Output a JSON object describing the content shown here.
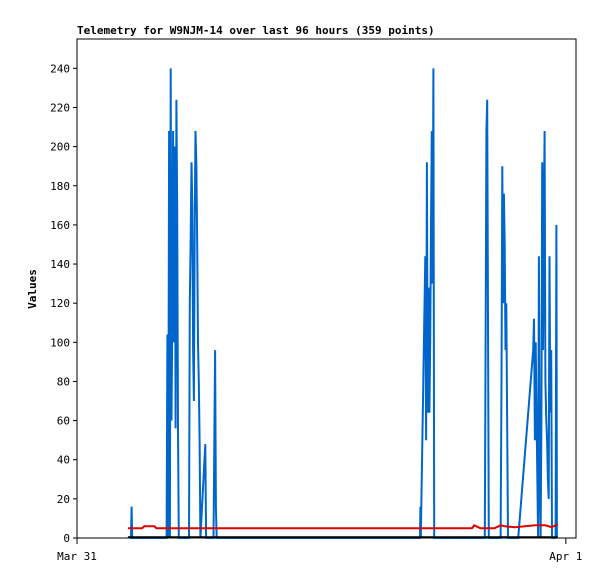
{
  "chart_data": {
    "type": "line",
    "title": "Telemetry for W9NJM-14 over last 96 hours (359 points)",
    "ylabel": "Values",
    "xlabel": "",
    "ylim": [
      0,
      255
    ],
    "xlim_hours": [
      0,
      24.5
    ],
    "x_ticks": [
      {
        "label": "Mar 31",
        "x": 0
      },
      {
        "label": "Apr 1",
        "x": 24
      }
    ],
    "y_ticks": [
      0,
      20,
      40,
      60,
      80,
      100,
      120,
      140,
      160,
      180,
      200,
      220,
      240
    ],
    "grid": false,
    "legend": "none",
    "series": [
      {
        "color": "#0066cc",
        "points": [
          [
            2.6,
            0
          ],
          [
            2.65,
            0
          ],
          [
            2.68,
            16
          ],
          [
            2.71,
            0
          ],
          [
            4.4,
            0
          ],
          [
            4.44,
            104
          ],
          [
            4.48,
            0
          ],
          [
            4.52,
            208
          ],
          [
            4.56,
            0
          ],
          [
            4.6,
            240
          ],
          [
            4.64,
            60
          ],
          [
            4.68,
            112
          ],
          [
            4.72,
            208
          ],
          [
            4.76,
            100
          ],
          [
            4.8,
            200
          ],
          [
            4.84,
            56
          ],
          [
            4.88,
            224
          ],
          [
            4.92,
            168
          ],
          [
            4.96,
            56
          ],
          [
            5.0,
            0
          ],
          [
            5.5,
            0
          ],
          [
            5.54,
            120
          ],
          [
            5.58,
            150
          ],
          [
            5.62,
            192
          ],
          [
            5.66,
            170
          ],
          [
            5.7,
            96
          ],
          [
            5.74,
            70
          ],
          [
            5.78,
            160
          ],
          [
            5.82,
            208
          ],
          [
            5.86,
            190
          ],
          [
            5.9,
            150
          ],
          [
            5.94,
            100
          ],
          [
            5.98,
            80
          ],
          [
            6.02,
            50
          ],
          [
            6.06,
            0
          ],
          [
            6.3,
            48
          ],
          [
            6.34,
            0
          ],
          [
            6.7,
            0
          ],
          [
            6.74,
            48
          ],
          [
            6.78,
            96
          ],
          [
            6.82,
            16
          ],
          [
            6.86,
            0
          ],
          [
            6.9,
            0
          ],
          [
            16.84,
            0
          ],
          [
            16.86,
            16
          ],
          [
            16.88,
            0
          ],
          [
            17.1,
            144
          ],
          [
            17.14,
            50
          ],
          [
            17.18,
            192
          ],
          [
            17.22,
            64
          ],
          [
            17.26,
            128
          ],
          [
            17.3,
            64
          ],
          [
            17.34,
            100
          ],
          [
            17.38,
            160
          ],
          [
            17.42,
            208
          ],
          [
            17.46,
            130
          ],
          [
            17.5,
            240
          ],
          [
            17.54,
            0
          ],
          [
            20.02,
            0
          ],
          [
            20.06,
            100
          ],
          [
            20.1,
            208
          ],
          [
            20.14,
            224
          ],
          [
            20.18,
            112
          ],
          [
            20.22,
            0
          ],
          [
            20.8,
            0
          ],
          [
            20.84,
            80
          ],
          [
            20.88,
            190
          ],
          [
            20.92,
            120
          ],
          [
            20.96,
            176
          ],
          [
            21.0,
            150
          ],
          [
            21.04,
            96
          ],
          [
            21.08,
            120
          ],
          [
            21.12,
            56
          ],
          [
            21.16,
            0
          ],
          [
            21.66,
            0
          ],
          [
            22.4,
            96
          ],
          [
            22.44,
            112
          ],
          [
            22.48,
            50
          ],
          [
            22.52,
            100
          ],
          [
            22.56,
            64
          ],
          [
            22.6,
            32
          ],
          [
            22.64,
            0
          ],
          [
            22.68,
            144
          ],
          [
            22.72,
            32
          ],
          [
            22.76,
            0
          ],
          [
            22.8,
            60
          ],
          [
            22.84,
            192
          ],
          [
            22.88,
            96
          ],
          [
            22.92,
            160
          ],
          [
            22.96,
            208
          ],
          [
            23.0,
            80
          ],
          [
            23.04,
            60
          ],
          [
            23.08,
            50
          ],
          [
            23.12,
            30
          ],
          [
            23.16,
            20
          ],
          [
            23.2,
            144
          ],
          [
            23.24,
            64
          ],
          [
            23.28,
            96
          ],
          [
            23.32,
            0
          ],
          [
            23.4,
            0
          ],
          [
            23.5,
            0
          ],
          [
            23.54,
            160
          ],
          [
            23.56,
            0
          ]
        ]
      },
      {
        "color": "#dd0000",
        "points": [
          [
            2.5,
            5
          ],
          [
            3.2,
            5
          ],
          [
            3.3,
            6
          ],
          [
            3.8,
            6
          ],
          [
            3.9,
            5
          ],
          [
            19.4,
            5
          ],
          [
            19.5,
            6.5
          ],
          [
            19.8,
            5
          ],
          [
            20.5,
            5
          ],
          [
            20.8,
            6.5
          ],
          [
            21.0,
            6
          ],
          [
            21.5,
            5.5
          ],
          [
            22.0,
            6
          ],
          [
            22.5,
            6.5
          ],
          [
            23.0,
            6.5
          ],
          [
            23.3,
            5.5
          ],
          [
            23.6,
            7
          ]
        ]
      },
      {
        "color": "#000000",
        "points": [
          [
            2.5,
            0.4
          ],
          [
            23.6,
            0.4
          ]
        ]
      }
    ]
  }
}
